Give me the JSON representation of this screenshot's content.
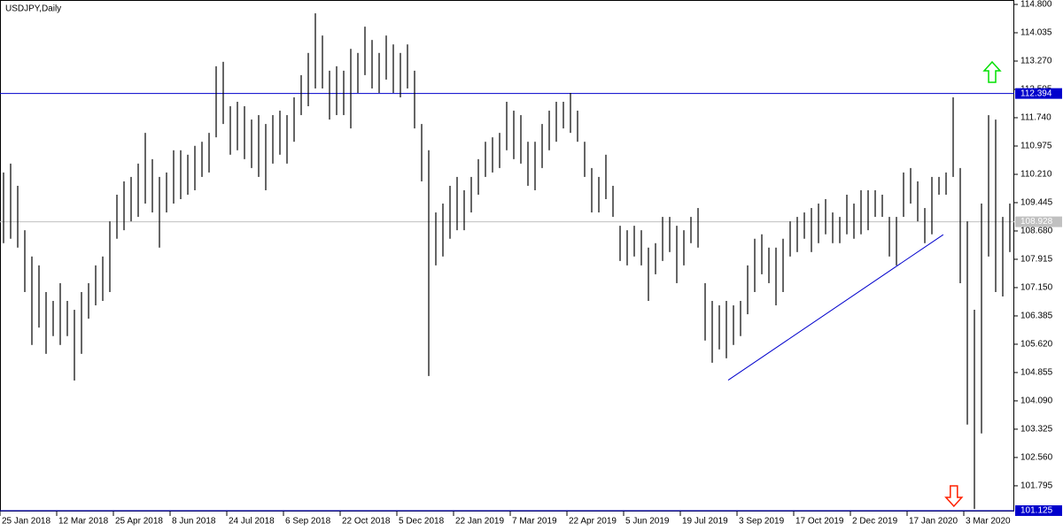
{
  "chart_data": {
    "type": "ohlc",
    "title": "USDJPY,Daily",
    "color": "#000000",
    "categories": [
      "25 Jan 2018",
      null,
      null,
      null,
      null,
      null,
      null,
      null,
      "12 Mar 2018",
      null,
      null,
      null,
      null,
      null,
      null,
      null,
      "25 Apr 2018",
      null,
      null,
      null,
      null,
      null,
      null,
      null,
      "8 Jun 2018",
      null,
      null,
      null,
      null,
      null,
      null,
      null,
      "24 Jul 2018",
      null,
      null,
      null,
      null,
      null,
      null,
      null,
      "6 Sep 2018",
      null,
      null,
      null,
      null,
      null,
      null,
      null,
      "22 Oct 2018",
      null,
      null,
      null,
      null,
      null,
      null,
      null,
      "5 Dec 2018",
      null,
      null,
      null,
      null,
      null,
      null,
      null,
      "22 Jan 2019",
      null,
      null,
      null,
      null,
      null,
      null,
      null,
      "7 Mar 2019",
      null,
      null,
      null,
      null,
      null,
      null,
      null,
      "22 Apr 2019",
      null,
      null,
      null,
      null,
      null,
      null,
      null,
      "5 Jun 2019",
      null,
      null,
      null,
      null,
      null,
      null,
      null,
      "19 Jul 2019",
      null,
      null,
      null,
      null,
      null,
      null,
      null,
      "3 Sep 2019",
      null,
      null,
      null,
      null,
      null,
      null,
      null,
      "17 Oct 2019",
      null,
      null,
      null,
      null,
      null,
      null,
      null,
      "2 Dec 2019",
      null,
      null,
      null,
      null,
      null,
      null,
      null,
      "17 Jan 2020",
      null,
      null,
      null,
      null,
      null,
      null,
      null,
      "3 Mar 2020",
      null,
      null,
      null,
      null,
      null,
      null
    ],
    "high": [
      110.26,
      110.5,
      109.9,
      108.7,
      107.99,
      107.75,
      107.03,
      106.79,
      107.27,
      106.79,
      106.55,
      107.03,
      107.27,
      107.75,
      107.99,
      108.94,
      109.66,
      110.02,
      110.14,
      110.5,
      111.33,
      110.62,
      110.14,
      110.26,
      110.86,
      110.86,
      110.74,
      110.98,
      111.09,
      111.33,
      113.13,
      113.25,
      112.05,
      112.17,
      112.05,
      111.69,
      111.81,
      111.57,
      111.81,
      111.93,
      111.81,
      112.29,
      112.89,
      113.49,
      114.56,
      113.96,
      113.01,
      113.13,
      113.01,
      113.6,
      113.49,
      114.2,
      113.84,
      113.49,
      113.96,
      113.72,
      113.49,
      113.72,
      113.01,
      111.57,
      110.86,
      109.18,
      109.42,
      109.9,
      110.14,
      109.78,
      110.14,
      110.62,
      111.09,
      111.21,
      111.33,
      112.17,
      111.93,
      111.81,
      111.09,
      111.09,
      111.57,
      111.93,
      112.17,
      112.17,
      112.41,
      111.93,
      111.09,
      110.38,
      110.14,
      110.74,
      109.9,
      108.82,
      108.7,
      108.82,
      108.7,
      108.23,
      108.35,
      109.06,
      109.06,
      108.82,
      108.7,
      109.06,
      109.3,
      107.27,
      106.79,
      106.67,
      106.79,
      106.67,
      106.79,
      107.75,
      108.47,
      108.59,
      108.23,
      108.23,
      108.47,
      108.94,
      109.06,
      109.18,
      109.3,
      109.42,
      109.54,
      109.18,
      109.06,
      109.66,
      109.42,
      109.78,
      109.78,
      109.78,
      109.66,
      109.06,
      109.06,
      110.26,
      110.38,
      110.02,
      109.3,
      110.14,
      110.14,
      110.26,
      112.29,
      110.38,
      108.94,
      106.55,
      109.42,
      111.81,
      111.69,
      109.06,
      109.42
    ],
    "low": [
      108.35,
      108.47,
      108.23,
      107.03,
      105.6,
      106.07,
      105.36,
      105.84,
      105.6,
      105.84,
      104.64,
      105.36,
      106.31,
      106.67,
      106.79,
      107.03,
      108.47,
      108.7,
      108.94,
      109.06,
      109.42,
      109.18,
      108.23,
      109.18,
      109.42,
      109.54,
      109.66,
      109.78,
      110.14,
      110.26,
      111.21,
      111.57,
      110.74,
      110.86,
      110.62,
      110.38,
      110.14,
      109.78,
      110.5,
      110.74,
      110.5,
      111.09,
      111.81,
      112.05,
      112.53,
      112.53,
      111.69,
      111.81,
      111.81,
      111.45,
      112.41,
      112.89,
      112.53,
      112.41,
      112.77,
      112.41,
      112.29,
      112.53,
      111.45,
      110.02,
      104.76,
      107.75,
      107.99,
      108.47,
      108.7,
      108.7,
      109.18,
      109.66,
      110.14,
      110.26,
      110.38,
      110.86,
      110.62,
      110.5,
      109.9,
      109.78,
      110.38,
      110.86,
      111.09,
      111.45,
      111.33,
      111.09,
      110.14,
      109.18,
      109.18,
      109.54,
      109.06,
      107.87,
      107.75,
      107.99,
      107.75,
      106.79,
      107.51,
      107.87,
      108.11,
      107.27,
      107.75,
      108.35,
      108.23,
      105.72,
      105.12,
      105.48,
      105.24,
      105.6,
      105.84,
      106.43,
      107.03,
      107.51,
      107.27,
      106.67,
      107.03,
      107.99,
      108.11,
      108.47,
      108.11,
      108.35,
      108.59,
      108.35,
      108.35,
      108.59,
      108.47,
      108.59,
      108.7,
      109.06,
      109.06,
      107.99,
      107.75,
      109.06,
      109.42,
      108.94,
      108.35,
      108.59,
      109.66,
      109.66,
      110.14,
      107.27,
      103.45,
      101.17,
      103.21,
      107.99,
      107.03,
      106.91,
      108.11
    ],
    "ylim": [
      101.1,
      114.92
    ],
    "yticks": [
      {
        "value": 114.8,
        "label": "114.800"
      },
      114.035,
      {
        "value": 113.27,
        "label": "113.270"
      },
      112.505,
      {
        "value": 111.74,
        "label": "111.740"
      },
      110.975,
      {
        "value": 110.21,
        "label": "110.210"
      },
      109.445,
      {
        "value": 108.68,
        "label": "108.680"
      },
      107.915,
      {
        "value": 107.15,
        "label": "107.150"
      },
      106.385,
      {
        "value": 105.62,
        "label": "105.620"
      },
      104.855,
      {
        "value": 104.09,
        "label": "104.090"
      },
      103.325,
      {
        "value": 102.56,
        "label": "102.560"
      },
      101.795
    ],
    "hlines": [
      {
        "value": 112.394,
        "color": "#0000cc"
      },
      {
        "value": 108.928,
        "color": "#c0c0c0"
      },
      {
        "value": 101.125,
        "color": "#0000cc"
      }
    ],
    "trendline": {
      "x": [
        102.25,
        132.6
      ],
      "y": [
        104.65,
        108.58
      ],
      "color": "#0000cc"
    },
    "arrows": [
      {
        "direction": "up",
        "x": 139.5,
        "y": 112.96,
        "color": "#00e000"
      },
      {
        "direction": "down",
        "x": 134.1,
        "y": 101.53,
        "color": "#ff2000"
      }
    ]
  }
}
